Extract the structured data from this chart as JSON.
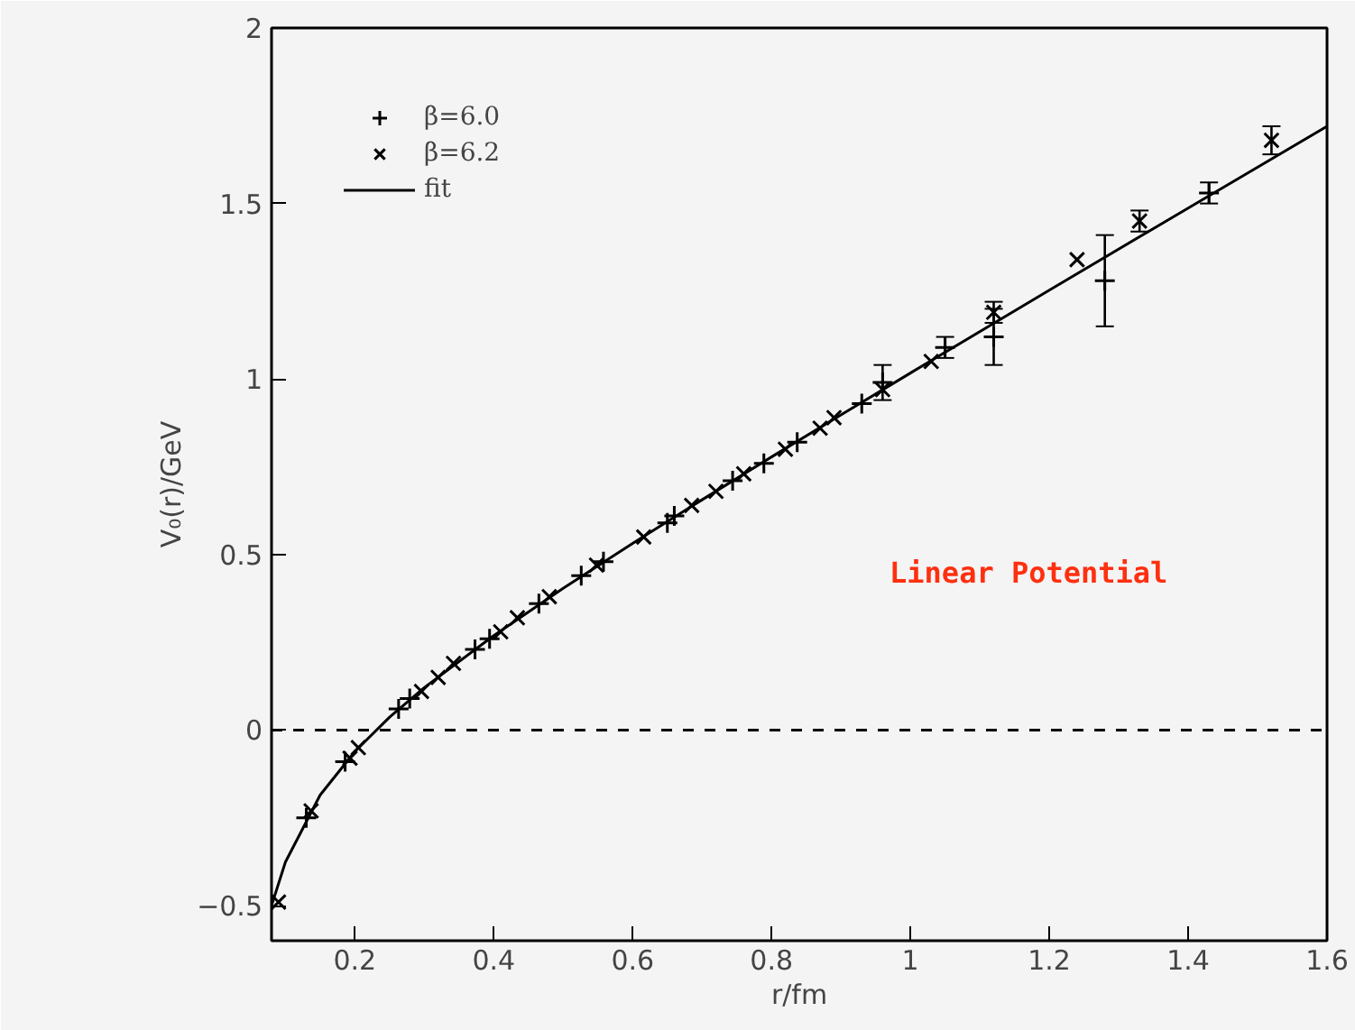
{
  "chart_data": {
    "type": "scatter",
    "xlabel": "r/fm",
    "ylabel": "V₀(r)/GeV",
    "xlim": [
      0.08,
      1.6
    ],
    "ylim": [
      -0.6,
      2
    ],
    "xticks": [
      0.2,
      0.4,
      0.6,
      0.8,
      1,
      1.2,
      1.4,
      1.6
    ],
    "yticks": [
      -0.5,
      0,
      0.5,
      1,
      1.5,
      2
    ],
    "grid": false,
    "legend": "top left",
    "series": [
      {
        "name": "β=6.0",
        "marker": "cross",
        "color": "#000000",
        "x": [
          0.13,
          0.186,
          0.263,
          0.279,
          0.373,
          0.394,
          0.465,
          0.526,
          0.558,
          0.65,
          0.66,
          0.744,
          0.789,
          0.837,
          0.93,
          0.96,
          1.05,
          1.12,
          1.28,
          1.43
        ],
        "values": [
          -0.25,
          -0.09,
          0.06,
          0.09,
          0.23,
          0.26,
          0.36,
          0.44,
          0.48,
          0.59,
          0.61,
          0.71,
          0.76,
          0.82,
          0.93,
          0.99,
          1.09,
          1.12,
          1.28,
          1.53
        ],
        "errors": [
          null,
          null,
          null,
          null,
          null,
          null,
          null,
          null,
          null,
          null,
          null,
          null,
          null,
          null,
          null,
          0.05,
          0.03,
          0.08,
          0.13,
          0.03
        ]
      },
      {
        "name": "β=6.2",
        "marker": "x",
        "color": "#000000",
        "x": [
          0.09,
          0.137,
          0.193,
          0.205,
          0.296,
          0.32,
          0.342,
          0.41,
          0.434,
          0.48,
          0.548,
          0.616,
          0.685,
          0.72,
          0.76,
          0.82,
          0.87,
          0.89,
          0.96,
          1.03,
          1.12,
          1.24,
          1.33,
          1.52
        ],
        "values": [
          -0.49,
          -0.23,
          -0.08,
          -0.05,
          0.11,
          0.15,
          0.19,
          0.28,
          0.32,
          0.38,
          0.47,
          0.55,
          0.64,
          0.68,
          0.73,
          0.8,
          0.86,
          0.89,
          0.97,
          1.05,
          1.19,
          1.34,
          1.45,
          1.68
        ],
        "errors": [
          null,
          null,
          null,
          null,
          null,
          null,
          null,
          null,
          null,
          null,
          null,
          null,
          null,
          null,
          null,
          null,
          null,
          null,
          null,
          null,
          0.03,
          null,
          0.03,
          0.04
        ]
      },
      {
        "name": "fit",
        "type": "line",
        "line_style": "solid",
        "color": "#000000",
        "x": [
          0.08,
          0.1,
          0.15,
          0.2,
          0.25,
          0.3,
          0.4,
          0.5,
          0.6,
          0.7,
          0.8,
          0.9,
          1.0,
          1.2,
          1.4,
          1.6
        ],
        "values": [
          -0.5,
          -0.376,
          -0.185,
          -0.061,
          0.037,
          0.121,
          0.269,
          0.404,
          0.532,
          0.656,
          0.778,
          0.898,
          1.017,
          1.253,
          1.487,
          1.72
        ]
      }
    ],
    "ref_lines": [
      {
        "axis": "y",
        "value": 0,
        "line_style": "dashed",
        "color": "#000000"
      }
    ],
    "annotations": [
      "Linear Potential"
    ]
  }
}
